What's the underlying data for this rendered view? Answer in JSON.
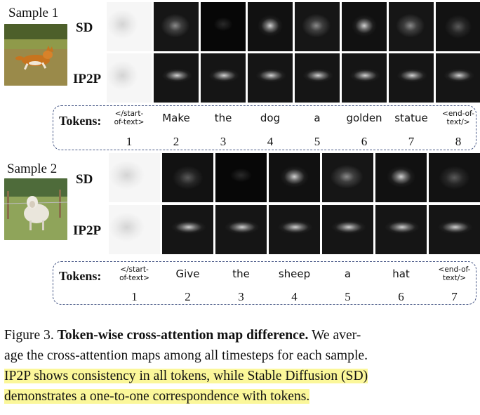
{
  "samples": [
    {
      "label": "Sample 1",
      "rows": [
        "SD",
        "IP2P"
      ],
      "tokens_title": "Tokens:",
      "tokens": [
        "</start-of-text>",
        "Make",
        "the",
        "dog",
        "a",
        "golden",
        "statue",
        "<end-of-text/>"
      ],
      "token_lines": [
        [
          "</start-",
          "of-text>"
        ],
        [
          "Make"
        ],
        [
          "the"
        ],
        [
          "dog"
        ],
        [
          "a"
        ],
        [
          "golden"
        ],
        [
          "statue"
        ],
        [
          "<end-of-",
          "text/>"
        ]
      ],
      "numbers": [
        "1",
        "2",
        "3",
        "4",
        "5",
        "6",
        "7",
        "8"
      ]
    },
    {
      "label": "Sample 2",
      "rows": [
        "SD",
        "IP2P"
      ],
      "tokens_title": "Tokens:",
      "tokens": [
        "</start-of-text>",
        "Give",
        "the",
        "sheep",
        "a",
        "hat",
        "<end-of-text/>"
      ],
      "token_lines": [
        [
          "</start-",
          "of-text>"
        ],
        [
          "Give"
        ],
        [
          "the"
        ],
        [
          "sheep"
        ],
        [
          "a"
        ],
        [
          "hat"
        ],
        [
          "<end-of-",
          "text/>"
        ]
      ],
      "numbers": [
        "1",
        "2",
        "3",
        "4",
        "5",
        "6",
        "7"
      ]
    }
  ],
  "caption": {
    "prefix": "Figure 3.",
    "bold": "Token-wise cross-attention map difference.",
    "line1_rest": "We aver-",
    "line2": "age the cross-attention maps among all timesteps for each sample.",
    "line3": "IP2P shows consistency in all tokens, while Stable Diffusion (SD)",
    "line4": "demonstrates a one-to-one correspondence with tokens."
  }
}
